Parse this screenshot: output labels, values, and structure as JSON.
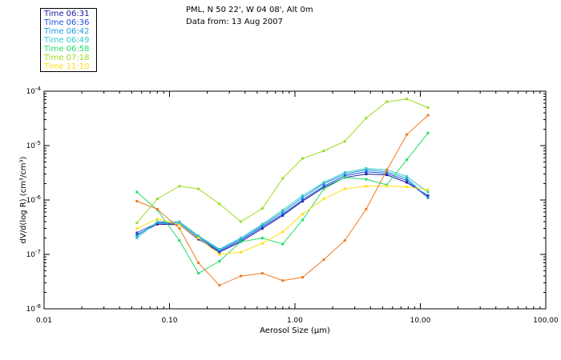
{
  "header": {
    "location": "PML, N 50 22', W 04 08', Alt 0m",
    "date": "Data from: 13 Aug 2007"
  },
  "chart_data": {
    "type": "line",
    "xscale": "log",
    "yscale": "log",
    "xlabel": "Aerosol Size (μm)",
    "ylabel": "dV/d(log R) (cm³/cm³)",
    "xlim": [
      0.01,
      100
    ],
    "ylim": [
      1e-08,
      0.0001
    ],
    "x_ticks": [
      {
        "value": 0.01,
        "label": "0.01"
      },
      {
        "value": 0.1,
        "label": "0.10"
      },
      {
        "value": 1,
        "label": "1.00"
      },
      {
        "value": 10,
        "label": "10.00"
      },
      {
        "value": 100,
        "label": "100.00"
      }
    ],
    "y_ticks": [
      {
        "value": 1e-08,
        "base": "10",
        "exp": "-8"
      },
      {
        "value": 1e-07,
        "base": "10",
        "exp": "-7"
      },
      {
        "value": 1e-06,
        "base": "10",
        "exp": "-6"
      },
      {
        "value": 1e-05,
        "base": "10",
        "exp": "-5"
      },
      {
        "value": 0.0001,
        "base": "10",
        "exp": "-4"
      }
    ],
    "x": [
      0.055,
      0.08,
      0.12,
      0.17,
      0.25,
      0.37,
      0.55,
      0.8,
      1.15,
      1.7,
      2.5,
      3.7,
      5.4,
      7.8,
      11.5
    ],
    "series": [
      {
        "name": "Time 06:31",
        "color": "#1a1aa0",
        "values": [
          2.3e-07,
          3.6e-07,
          3.5e-07,
          1.9e-07,
          1.1e-07,
          1.7e-07,
          3e-07,
          5.2e-07,
          9.5e-07,
          1.7e-06,
          2.6e-06,
          3e-06,
          2.9e-06,
          2.1e-06,
          1.2e-06
        ]
      },
      {
        "name": "Time 06:36",
        "color": "#2050e0",
        "values": [
          2.5e-07,
          3.8e-07,
          3.6e-07,
          2e-07,
          1.15e-07,
          1.8e-07,
          3.2e-07,
          5.5e-07,
          1e-06,
          1.8e-06,
          2.8e-06,
          3.3e-06,
          3.1e-06,
          2.3e-06,
          1.1e-06
        ]
      },
      {
        "name": "Time 06:42",
        "color": "#1a9ae0",
        "values": [
          2.2e-07,
          3.9e-07,
          3.8e-07,
          2.1e-07,
          1.2e-07,
          1.9e-07,
          3.4e-07,
          6e-07,
          1.1e-06,
          2e-06,
          3e-06,
          3.6e-06,
          3.3e-06,
          2.5e-06,
          1.1e-06
        ]
      },
      {
        "name": "Time 06:49",
        "color": "#30c8c8",
        "values": [
          2e-07,
          4e-07,
          4e-07,
          2.2e-07,
          1.25e-07,
          2e-07,
          3.6e-07,
          6.5e-07,
          1.2e-06,
          2.1e-06,
          3.2e-06,
          3.8e-06,
          3.6e-06,
          2.7e-06,
          1.4e-06
        ]
      },
      {
        "name": "Time 06:58",
        "color": "#22dd66",
        "values": [
          1.4e-06,
          6.6e-07,
          1.8e-07,
          4.5e-08,
          7.5e-08,
          1.7e-07,
          2e-07,
          1.55e-07,
          4.3e-07,
          1.6e-06,
          2.6e-06,
          2.4e-06,
          1.9e-06,
          5.5e-06,
          1.7e-05
        ]
      },
      {
        "name": "Time 07:18",
        "color": "#99dd22",
        "values": [
          3.8e-07,
          1.05e-06,
          1.8e-06,
          1.6e-06,
          8.5e-07,
          4e-07,
          7e-07,
          2.5e-06,
          5.8e-06,
          8e-06,
          1.2e-05,
          3.2e-05,
          6.4e-05,
          7.2e-05,
          5e-05
        ]
      },
      {
        "name": "Time 11:10",
        "color": "#ffe019",
        "values": [
          3e-07,
          4.5e-07,
          3.5e-07,
          2e-07,
          1e-07,
          1.1e-07,
          1.6e-07,
          2.6e-07,
          5.5e-07,
          1.05e-06,
          1.6e-06,
          1.8e-06,
          1.8e-06,
          1.75e-06,
          1.55e-06
        ]
      },
      {
        "name": "",
        "color": "#f07a20",
        "values": [
          9.5e-07,
          6.8e-07,
          3e-07,
          7e-08,
          2.7e-08,
          4e-08,
          4.5e-08,
          3.3e-08,
          3.8e-08,
          8e-08,
          1.8e-07,
          6.8e-07,
          3.5e-06,
          1.6e-05,
          3.6e-05
        ]
      }
    ]
  }
}
